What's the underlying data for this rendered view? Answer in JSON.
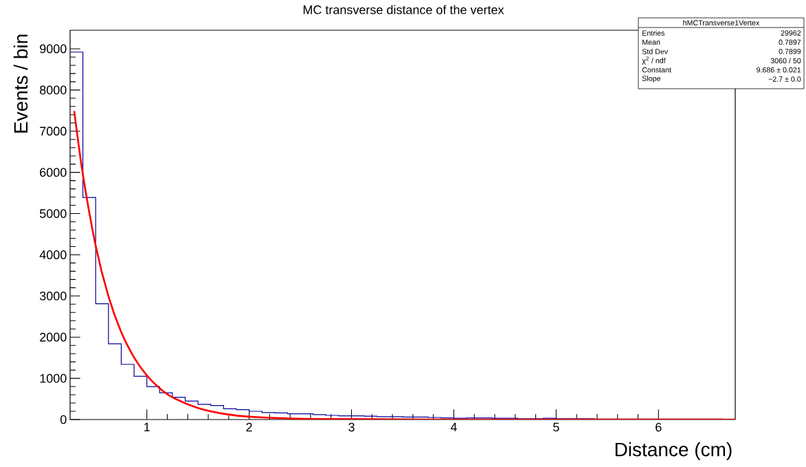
{
  "chart_data": {
    "type": "histogram",
    "title": "MC transverse distance of the vertex",
    "xlabel": "Distance (cm)",
    "ylabel": "Events / bin",
    "xlim": [
      0.25,
      6.75
    ],
    "ylim": [
      0,
      9450
    ],
    "xticks": [
      1,
      2,
      3,
      4,
      5,
      6
    ],
    "yticks": [
      0,
      1000,
      2000,
      3000,
      4000,
      5000,
      6000,
      7000,
      8000,
      9000
    ],
    "series": [
      {
        "color": "#000099",
        "bins": [
          0.25,
          0.375,
          0.5,
          0.625,
          0.75,
          0.875,
          1.0,
          1.125,
          1.25,
          1.375,
          1.5,
          1.625,
          1.75,
          1.875,
          2.0,
          2.125,
          2.25,
          2.375,
          2.5,
          2.625,
          2.75,
          2.875,
          3.0,
          3.125,
          3.25,
          3.375,
          3.5,
          3.625,
          3.75,
          3.875,
          4.0,
          4.125,
          4.25,
          4.375,
          4.5,
          4.625,
          4.75,
          4.875,
          5.0,
          5.125,
          5.25,
          5.375,
          5.5,
          5.625,
          5.75,
          5.875,
          6.0,
          6.125,
          6.25,
          6.375,
          6.5,
          6.625,
          6.75
        ],
        "values": [
          8920,
          5390,
          2810,
          1840,
          1340,
          1050,
          800,
          650,
          540,
          450,
          370,
          340,
          260,
          240,
          200,
          170,
          160,
          140,
          140,
          120,
          100,
          90,
          90,
          80,
          70,
          70,
          60,
          60,
          50,
          40,
          30,
          40,
          40,
          30,
          30,
          20,
          20,
          30,
          20,
          20,
          20,
          10,
          10,
          10,
          10,
          10,
          10,
          10,
          10,
          10,
          10,
          0
        ]
      },
      {
        "type": "line",
        "color": "#ff0000",
        "x": [
          0.29,
          0.375,
          0.5,
          0.625,
          0.75,
          0.875,
          1.0,
          1.125,
          1.25,
          1.5,
          1.75,
          2.0,
          2.5,
          3.0,
          4.0,
          5.0,
          6.75
        ],
        "values": [
          7490,
          5950,
          4220,
          2990,
          2120,
          1510,
          1070,
          760,
          540,
          280,
          140,
          70,
          20,
          10,
          0,
          0,
          0
        ]
      }
    ],
    "annotations": [
      "hMCTransverse1Vertex",
      "Entries",
      "29962",
      "Mean",
      "0.7897",
      "Std Dev",
      "0.7899",
      "χ$^{2}$ / ndf",
      "3060 / 50",
      "Constant",
      "9.686 ± 0.021",
      "Slope",
      "−2.7 ± 0.0"
    ]
  }
}
